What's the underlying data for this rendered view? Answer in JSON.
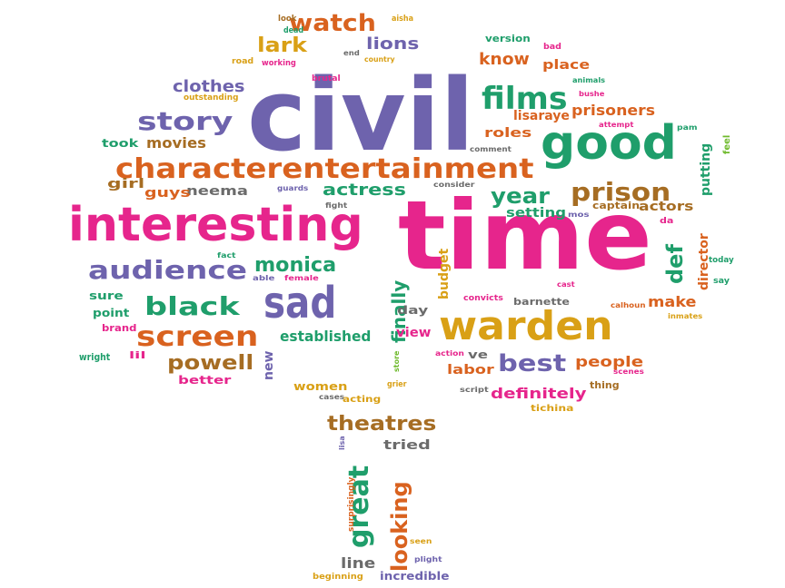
{
  "palette": {
    "purple": "#6e63ad",
    "green": "#1f9e6b",
    "orange": "#d9621f",
    "pink": "#e6258c",
    "gold": "#d9a016",
    "brown": "#a66d23",
    "gray": "#6b6b6b",
    "lime": "#6fba2c"
  },
  "words": [
    {
      "text": "civil",
      "color": "purple"
    },
    {
      "text": "time",
      "color": "pink"
    },
    {
      "text": "interesting",
      "color": "pink"
    },
    {
      "text": "good",
      "color": "green"
    },
    {
      "text": "warden",
      "color": "gold"
    },
    {
      "text": "characterentertainment",
      "color": "orange"
    },
    {
      "text": "sad",
      "color": "purple"
    },
    {
      "text": "audience",
      "color": "purple"
    },
    {
      "text": "films",
      "color": "green"
    },
    {
      "text": "story",
      "color": "purple"
    },
    {
      "text": "screen",
      "color": "orange"
    },
    {
      "text": "black",
      "color": "green"
    },
    {
      "text": "prison",
      "color": "brown"
    },
    {
      "text": "watch",
      "color": "orange"
    },
    {
      "text": "year",
      "color": "green"
    },
    {
      "text": "best",
      "color": "purple"
    },
    {
      "text": "great",
      "color": "green"
    },
    {
      "text": "looking",
      "color": "orange"
    },
    {
      "text": "powell",
      "color": "brown"
    },
    {
      "text": "theatres",
      "color": "brown"
    },
    {
      "text": "def",
      "color": "green"
    },
    {
      "text": "monica",
      "color": "green"
    },
    {
      "text": "actress",
      "color": "green"
    },
    {
      "text": "finally",
      "color": "green"
    },
    {
      "text": "lark",
      "color": "gold"
    },
    {
      "text": "know",
      "color": "orange"
    },
    {
      "text": "clothes",
      "color": "purple"
    },
    {
      "text": "movies",
      "color": "brown"
    },
    {
      "text": "definitely",
      "color": "pink"
    },
    {
      "text": "people",
      "color": "orange"
    },
    {
      "text": "prisoners",
      "color": "orange"
    },
    {
      "text": "lisaraye",
      "color": "orange"
    },
    {
      "text": "director",
      "color": "orange"
    },
    {
      "text": "established",
      "color": "green"
    },
    {
      "text": "neema",
      "color": "gray"
    },
    {
      "text": "lions",
      "color": "purple"
    },
    {
      "text": "place",
      "color": "orange"
    },
    {
      "text": "guys",
      "color": "orange"
    },
    {
      "text": "girl",
      "color": "brown"
    },
    {
      "text": "actors",
      "color": "brown"
    },
    {
      "text": "setting",
      "color": "green"
    },
    {
      "text": "make",
      "color": "orange"
    },
    {
      "text": "putting",
      "color": "green"
    },
    {
      "text": "roles",
      "color": "orange"
    },
    {
      "text": "budget",
      "color": "gold"
    },
    {
      "text": "labor",
      "color": "orange"
    },
    {
      "text": "tried",
      "color": "gray"
    },
    {
      "text": "line",
      "color": "gray"
    },
    {
      "text": "incredible",
      "color": "purple"
    },
    {
      "text": "women",
      "color": "gold"
    },
    {
      "text": "better",
      "color": "pink"
    },
    {
      "text": "sure",
      "color": "green"
    },
    {
      "text": "point",
      "color": "green"
    },
    {
      "text": "took",
      "color": "green"
    },
    {
      "text": "view",
      "color": "pink"
    },
    {
      "text": "day",
      "color": "gray"
    },
    {
      "text": "ve",
      "color": "gray"
    },
    {
      "text": "new",
      "color": "purple"
    },
    {
      "text": "barnette",
      "color": "gray"
    },
    {
      "text": "captain",
      "color": "brown"
    },
    {
      "text": "thing",
      "color": "brown"
    },
    {
      "text": "version",
      "color": "green"
    },
    {
      "text": "brand",
      "color": "pink"
    },
    {
      "text": "lil",
      "color": "pink"
    },
    {
      "text": "wright",
      "color": "green"
    },
    {
      "text": "outstanding",
      "color": "gold"
    },
    {
      "text": "look",
      "color": "brown"
    },
    {
      "text": "dead",
      "color": "green"
    },
    {
      "text": "aisha",
      "color": "gold"
    },
    {
      "text": "road",
      "color": "gold"
    },
    {
      "text": "working",
      "color": "pink"
    },
    {
      "text": "end",
      "color": "gray"
    },
    {
      "text": "country",
      "color": "gold"
    },
    {
      "text": "brutal",
      "color": "pink"
    },
    {
      "text": "bad",
      "color": "pink"
    },
    {
      "text": "animals",
      "color": "green"
    },
    {
      "text": "bushe",
      "color": "pink"
    },
    {
      "text": "attempt",
      "color": "pink"
    },
    {
      "text": "pam",
      "color": "green"
    },
    {
      "text": "feel",
      "color": "lime"
    },
    {
      "text": "comment",
      "color": "gray"
    },
    {
      "text": "consider",
      "color": "gray"
    },
    {
      "text": "guards",
      "color": "purple"
    },
    {
      "text": "fight",
      "color": "gray"
    },
    {
      "text": "mos",
      "color": "purple"
    },
    {
      "text": "da",
      "color": "pink"
    },
    {
      "text": "today",
      "color": "green"
    },
    {
      "text": "say",
      "color": "green"
    },
    {
      "text": "fact",
      "color": "green"
    },
    {
      "text": "able",
      "color": "purple"
    },
    {
      "text": "female",
      "color": "pink"
    },
    {
      "text": "cast",
      "color": "pink"
    },
    {
      "text": "convicts",
      "color": "pink"
    },
    {
      "text": "calhoun",
      "color": "orange"
    },
    {
      "text": "inmates",
      "color": "gold"
    },
    {
      "text": "action",
      "color": "pink"
    },
    {
      "text": "scenes",
      "color": "pink"
    },
    {
      "text": "script",
      "color": "gray"
    },
    {
      "text": "tichina",
      "color": "gold"
    },
    {
      "text": "cases",
      "color": "gray"
    },
    {
      "text": "acting",
      "color": "gold"
    },
    {
      "text": "grier",
      "color": "gold"
    },
    {
      "text": "store",
      "color": "lime"
    },
    {
      "text": "lisa",
      "color": "purple"
    },
    {
      "text": "surprisingly",
      "color": "orange"
    },
    {
      "text": "seen",
      "color": "gold"
    },
    {
      "text": "plight",
      "color": "purple"
    },
    {
      "text": "beginning",
      "color": "gold"
    }
  ]
}
